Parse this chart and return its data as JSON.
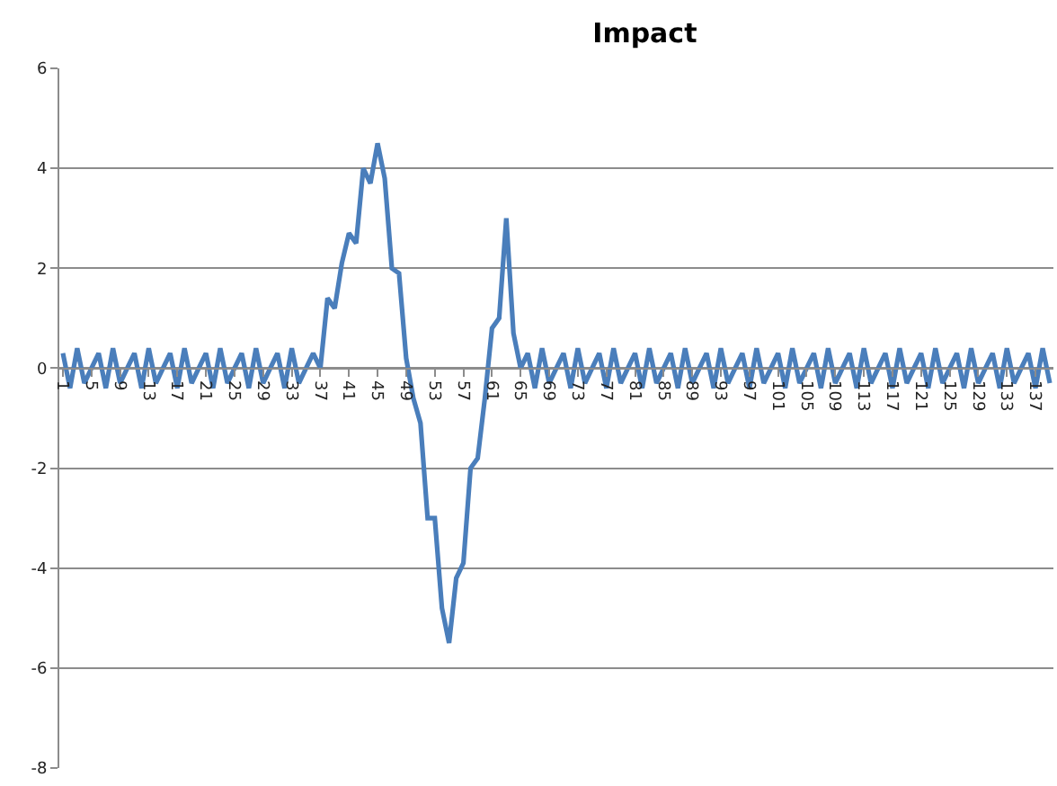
{
  "chart_data": {
    "type": "line",
    "title": "Impact",
    "categories": [
      "1",
      null,
      null,
      null,
      "5",
      null,
      null,
      null,
      "9",
      null,
      null,
      null,
      "13",
      null,
      null,
      null,
      "17",
      null,
      null,
      null,
      "21",
      null,
      null,
      null,
      "25",
      null,
      null,
      null,
      "29",
      null,
      null,
      null,
      "33",
      null,
      null,
      null,
      "37",
      null,
      null,
      null,
      "41",
      null,
      null,
      null,
      "45",
      null,
      null,
      null,
      "49",
      null,
      null,
      null,
      "53",
      null,
      null,
      null,
      "57",
      null,
      null,
      null,
      "61",
      null,
      null,
      null,
      "65",
      null,
      null,
      null,
      "69",
      null,
      null,
      null,
      "73",
      null,
      null,
      null,
      "77",
      null,
      null,
      null,
      "81",
      null,
      null,
      null,
      "85",
      null,
      null,
      null,
      "89",
      null,
      null,
      null,
      "93",
      null,
      null,
      null,
      "97",
      null,
      null,
      null,
      "101",
      null,
      null,
      null,
      "105",
      null,
      null,
      null,
      "109",
      null,
      null,
      null,
      "113",
      null,
      null,
      null,
      "117",
      null,
      null,
      null,
      "121",
      null,
      null,
      null,
      "125",
      null,
      null,
      null,
      "129",
      null,
      null,
      null,
      "133",
      null,
      null,
      null,
      "137",
      null,
      null
    ],
    "series": [
      {
        "color": "#4a7ebb",
        "values": [
          0.3,
          -0.4,
          0.4,
          -0.3,
          0.0,
          0.3,
          -0.4,
          0.4,
          -0.3,
          0.0,
          0.3,
          -0.4,
          0.4,
          -0.3,
          0.0,
          0.3,
          -0.4,
          0.4,
          -0.3,
          0.0,
          0.3,
          -0.4,
          0.4,
          -0.3,
          0.0,
          0.3,
          -0.4,
          0.4,
          -0.3,
          0.0,
          0.3,
          -0.4,
          0.4,
          -0.3,
          0.0,
          0.3,
          0.0,
          1.4,
          1.2,
          2.1,
          2.7,
          2.5,
          4.0,
          3.7,
          4.5,
          3.8,
          2.0,
          1.9,
          0.2,
          -0.6,
          -1.1,
          -3.0,
          -3.0,
          -4.8,
          -5.5,
          -4.2,
          -3.9,
          -2.0,
          -1.8,
          -0.6,
          0.8,
          1.0,
          3.0,
          0.7,
          0.0,
          0.3,
          -0.4,
          0.4,
          -0.3,
          0.0,
          0.3,
          -0.4,
          0.4,
          -0.3,
          0.0,
          0.3,
          -0.4,
          0.4,
          -0.3,
          0.0,
          0.3,
          -0.4,
          0.4,
          -0.3,
          0.0,
          0.3,
          -0.4,
          0.4,
          -0.3,
          0.0,
          0.3,
          -0.4,
          0.4,
          -0.3,
          0.0,
          0.3,
          -0.4,
          0.4,
          -0.3,
          0.0,
          0.3,
          -0.4,
          0.4,
          -0.3,
          0.0,
          0.3,
          -0.4,
          0.4,
          -0.3,
          0.0,
          0.3,
          -0.4,
          0.4,
          -0.3,
          0.0,
          0.3,
          -0.4,
          0.4,
          -0.3,
          0.0,
          0.3,
          -0.4,
          0.4,
          -0.3,
          0.0,
          0.3,
          -0.4,
          0.4,
          -0.3,
          0.0,
          0.3,
          -0.4,
          0.4,
          -0.3,
          0.0,
          0.3,
          -0.4,
          0.4,
          -0.3
        ]
      }
    ],
    "ylim": [
      -8,
      6
    ],
    "yticks": [
      -8,
      -6,
      -4,
      -2,
      0,
      2,
      4,
      6
    ],
    "grid": "y",
    "marker": "none",
    "line_style": "solid"
  }
}
